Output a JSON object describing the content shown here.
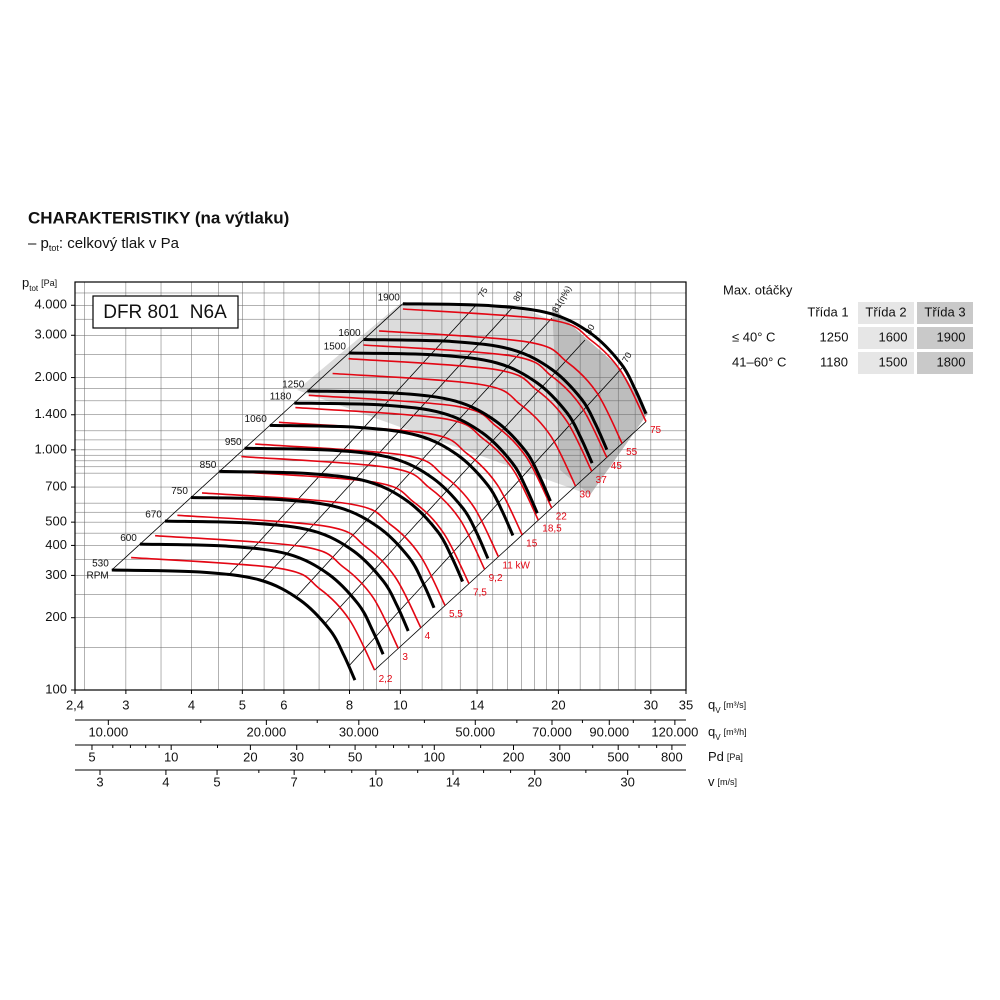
{
  "header": {
    "title": "CHARAKTERISTIKY (na výtlaku)",
    "subtitle_prefix": "– p",
    "subtitle_sub": "tot",
    "subtitle_rest": ": celkový tlak v Pa"
  },
  "chart_data": {
    "type": "line",
    "model": "DFR 801  N6A",
    "xscale": "log",
    "yscale": "log",
    "grid": true,
    "x_label": {
      "symbol": "q",
      "sub": "V",
      "unit": "[m³/s]"
    },
    "y_label": {
      "symbol": "p",
      "sub": "tot",
      "unit": "[Pa]"
    },
    "xlim": [
      2.4,
      35
    ],
    "xticks": [
      {
        "value": 2.4,
        "label": "2,4"
      },
      3,
      4,
      5,
      6,
      8,
      10,
      14,
      20,
      30,
      35
    ],
    "xgrid": [
      2.5,
      3,
      3.5,
      4,
      4.5,
      5,
      5.5,
      6,
      7,
      8,
      8.5,
      9,
      9.5,
      10,
      11,
      12,
      13,
      14,
      15,
      16,
      17,
      18,
      19,
      20,
      22,
      24,
      26,
      28,
      30
    ],
    "ylim": [
      100,
      5000
    ],
    "yticks": [
      100,
      200,
      300,
      400,
      500,
      700,
      {
        "value": 1000,
        "label": "1.000"
      },
      {
        "value": 1400,
        "label": "1.400"
      },
      {
        "value": 2000,
        "label": "2.000"
      },
      {
        "value": 3000,
        "label": "3.000"
      },
      {
        "value": 4000,
        "label": "4.000"
      }
    ],
    "ygrid": [
      150,
      200,
      250,
      300,
      350,
      400,
      450,
      500,
      550,
      600,
      700,
      800,
      850,
      900,
      950,
      1000,
      1100,
      1200,
      1400,
      1600,
      1800,
      2000,
      2500,
      3000,
      3500,
      4000,
      4500
    ],
    "speed_unit": "RPM",
    "series": [
      {
        "name": "530",
        "color": "#000000",
        "x": [
          2.82,
          4.15,
          5.4,
          6.44,
          7.34,
          7.8,
          8.19
        ],
        "values": [
          316,
          310,
          287,
          237,
          178,
          140,
          110
        ]
      },
      {
        "name": "600",
        "color": "#000000",
        "x": [
          3.19,
          4.7,
          6.11,
          7.29,
          8.31,
          8.83,
          9.27
        ],
        "values": [
          405,
          397,
          368,
          304,
          228,
          179,
          141
        ]
      },
      {
        "name": "670",
        "color": "#000000",
        "x": [
          3.56,
          5.25,
          6.83,
          8.14,
          9.28,
          9.86,
          10.35
        ],
        "values": [
          505,
          495,
          459,
          379,
          284,
          224,
          176
        ]
      },
      {
        "name": "750",
        "color": "#000000",
        "x": [
          3.99,
          5.87,
          7.64,
          9.11,
          10.39,
          11.04,
          11.59
        ],
        "values": [
          633,
          621,
          575,
          474,
          356,
          280,
          220
        ]
      },
      {
        "name": "850",
        "color": "#000000",
        "x": [
          4.52,
          6.66,
          8.66,
          10.33,
          11.77,
          12.51,
          13.14
        ],
        "values": [
          813,
          797,
          738,
          610,
          458,
          360,
          283
        ]
      },
      {
        "name": "950",
        "color": "#000000",
        "x": [
          5.05,
          7.44,
          9.68,
          11.54,
          13.15,
          13.98,
          14.68
        ],
        "values": [
          1015,
          996,
          922,
          761,
          572,
          450,
          353
        ]
      },
      {
        "name": "1060",
        "color": "#000000",
        "x": [
          5.64,
          8.3,
          10.8,
          12.88,
          14.68,
          15.6,
          16.38
        ],
        "values": [
          1264,
          1240,
          1148,
          948,
          712,
          560,
          440
        ]
      },
      {
        "name": "1180",
        "color": "#000000",
        "x": [
          6.28,
          9.24,
          12.02,
          14.34,
          16.34,
          17.36,
          18.23
        ],
        "values": [
          1566,
          1537,
          1423,
          1175,
          882,
          694,
          545
        ]
      },
      {
        "name": "1250",
        "color": "#000000",
        "x": [
          6.65,
          9.79,
          12.73,
          15.19,
          17.31,
          18.39,
          19.31
        ],
        "values": [
          1758,
          1724,
          1596,
          1318,
          990,
          779,
          612
        ]
      },
      {
        "name": "1500",
        "color": "#000000",
        "x": [
          7.98,
          11.74,
          15.28,
          18.23,
          20.77,
          22.07,
          23.18
        ],
        "values": [
          2531,
          2483,
          2299,
          1898,
          1426,
          1121,
          881
        ]
      },
      {
        "name": "1600",
        "color": "#000000",
        "x": [
          8.51,
          12.53,
          16.3,
          19.44,
          22.16,
          23.55,
          24.73
        ],
        "values": [
          2880,
          2825,
          2615,
          2160,
          1622,
          1276,
          1002
        ]
      },
      {
        "name": "1900",
        "color": "#000000",
        "x": [
          10.11,
          14.88,
          19.36,
          23.09,
          26.31,
          27.96,
          29.36
        ],
        "values": [
          4061,
          3984,
          3688,
          3045,
          2287,
          1799,
          1414
        ]
      }
    ],
    "power_series": [
      {
        "name": "2,2",
        "color": "#e30613",
        "x": [
          3.07,
          5.89,
          7.02,
          8.0,
          8.93
        ],
        "values": [
          356,
          321,
          264,
          196,
          121
        ]
      },
      {
        "name": "3",
        "color": "#e30613",
        "x": [
          3.41,
          6.53,
          7.79,
          8.88,
          9.91
        ],
        "values": [
          439,
          395,
          325,
          242,
          149
        ]
      },
      {
        "name": "4",
        "color": "#e30613",
        "x": [
          3.76,
          7.2,
          8.59,
          9.79,
          10.93
        ],
        "values": [
          534,
          481,
          395,
          294,
          182
        ]
      },
      {
        "name": "5,5",
        "color": "#e30613",
        "x": [
          4.19,
          8.02,
          9.56,
          10.9,
          12.16
        ],
        "values": [
          662,
          595,
          490,
          364,
          225
        ]
      },
      {
        "name": "7,5",
        "color": "#e30613",
        "x": [
          4.65,
          8.9,
          10.62,
          12.1,
          13.51
        ],
        "values": [
          816,
          734,
          604,
          449,
          277
        ]
      },
      {
        "name": "9,2",
        "color": "#e30613",
        "x": [
          4.98,
          9.54,
          11.38,
          12.97,
          14.47
        ],
        "values": [
          937,
          843,
          693,
          515,
          318
        ]
      },
      {
        "name": "11 kW",
        "color": "#e30613",
        "x": [
          5.29,
          10.14,
          12.09,
          13.78,
          15.37
        ],
        "values": [
          1057,
          951,
          782,
          581,
          359
        ]
      },
      {
        "name": "15",
        "color": "#e30613",
        "x": [
          5.87,
          11.25,
          13.41,
          15.29,
          17.06
        ],
        "values": [
          1302,
          1172,
          963,
          716,
          443
        ]
      },
      {
        "name": "18,5",
        "color": "#e30613",
        "x": [
          6.31,
          12.07,
          14.4,
          16.41,
          18.31
        ],
        "values": [
          1500,
          1350,
          1110,
          825,
          510
        ]
      },
      {
        "name": "22",
        "color": "#e30613",
        "x": [
          6.69,
          12.8,
          15.27,
          17.4,
          19.42
        ],
        "values": [
          1687,
          1518,
          1248,
          928,
          573
        ]
      },
      {
        "name": "30",
        "color": "#e30613",
        "x": [
          7.43,
          14.22,
          16.96,
          19.33,
          21.56
        ],
        "values": [
          2080,
          1872,
          1539,
          1144,
          707
        ]
      },
      {
        "name": "37",
        "color": "#e30613",
        "x": [
          7.97,
          15.26,
          18.2,
          20.74,
          23.14
        ],
        "values": [
          2396,
          2156,
          1773,
          1318,
          815
        ]
      },
      {
        "name": "45",
        "color": "#e30613",
        "x": [
          8.51,
          16.3,
          19.44,
          22.16,
          24.73
        ],
        "values": [
          2734,
          2461,
          2023,
          1504,
          930
        ]
      },
      {
        "name": "55",
        "color": "#e30613",
        "x": [
          9.11,
          17.44,
          20.8,
          23.71,
          26.45
        ],
        "values": [
          3129,
          2816,
          2315,
          1721,
          1064
        ]
      },
      {
        "name": "75",
        "color": "#e30613",
        "x": [
          10.11,
          19.36,
          23.09,
          26.32,
          29.37
        ],
        "values": [
          3858,
          3472,
          2855,
          2122,
          1312
        ]
      }
    ],
    "efficiency": {
      "values": [
        75,
        80,
        81,
        80,
        70
      ],
      "value_labels": [
        "75",
        "80",
        "81(η%)",
        "80",
        "70"
      ]
    },
    "extra_axes": [
      {
        "symbol": "q",
        "sub": "V",
        "unit": "[m³/h]",
        "lim": [
          8640,
          126000
        ],
        "ticks": [
          {
            "value": 10000,
            "label": "10.000"
          },
          {
            "value": 20000,
            "label": "20.000"
          },
          {
            "value": 30000,
            "label": "30.000"
          },
          {
            "value": 50000,
            "label": "50.000"
          },
          {
            "value": 70000,
            "label": "70.000"
          },
          {
            "value": 90000,
            "label": "90.000"
          },
          {
            "value": 120000,
            "label": "120.000"
          }
        ],
        "minor": [
          15000,
          25000,
          40000,
          60000,
          80000,
          100000,
          110000
        ]
      },
      {
        "symbol": "Pd",
        "unit": "[Pa]",
        "lim": [
          4.31,
          905
        ],
        "ticks": [
          5,
          10,
          20,
          30,
          50,
          100,
          200,
          300,
          500,
          800
        ],
        "minor": [
          6,
          7,
          8,
          9,
          15,
          40,
          60,
          70,
          80,
          90,
          150,
          400,
          600,
          700
        ]
      },
      {
        "symbol": "v",
        "unit": "[m/s]",
        "lim": [
          2.69,
          38.7
        ],
        "ticks": [
          3,
          4,
          5,
          7,
          10,
          14,
          20,
          30
        ],
        "minor": [
          6,
          8,
          9,
          12,
          16,
          18,
          25
        ]
      }
    ]
  },
  "table": {
    "title": "Max. otáčky",
    "header": [
      "Třída 1",
      "Třída 2",
      "Třída 3"
    ],
    "rows": [
      {
        "label": "≤ 40° C",
        "cells": [
          1250,
          1600,
          1900
        ]
      },
      {
        "label": "41–60° C",
        "cells": [
          1180,
          1500,
          1800
        ]
      }
    ]
  }
}
